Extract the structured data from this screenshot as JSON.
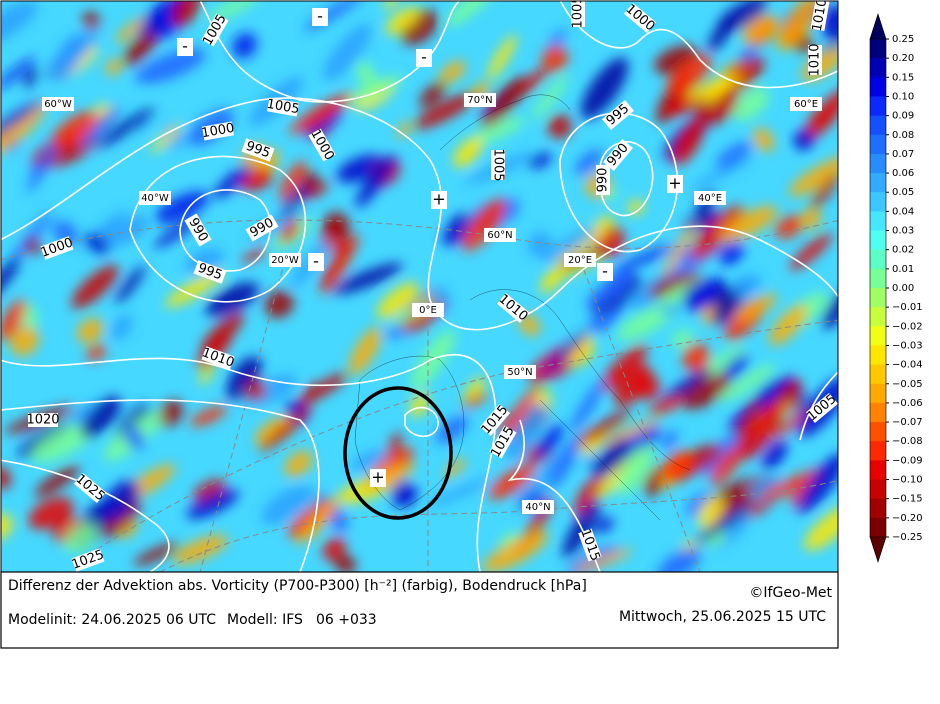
{
  "map": {
    "isobar_labels": [
      "1005",
      "1000",
      "1005",
      "1010",
      "1010",
      "1005",
      "1000",
      "995",
      "1000",
      "1005",
      "990",
      "995",
      "990",
      "1000",
      "990",
      "990",
      "995",
      "1010",
      "1010",
      "1020",
      "1015",
      "1015",
      "1025",
      "1025",
      "1015",
      "1005"
    ],
    "graticule_labels": [
      "60°W",
      "70°N",
      "60°E",
      "40°W",
      "40°E",
      "60°N",
      "20°W",
      "20°E",
      "0°E",
      "50°N",
      "40°N"
    ],
    "markers": [
      "+",
      "+",
      "+",
      "-",
      "-",
      "-",
      "-",
      "-"
    ]
  },
  "colorbar": {
    "labels": [
      "0.25",
      "0.20",
      "0.15",
      "0.10",
      "0.09",
      "0.08",
      "0.07",
      "0.06",
      "0.05",
      "0.04",
      "0.03",
      "0.02",
      "0.01",
      "0.00",
      "−0.01",
      "−0.02",
      "−0.03",
      "−0.04",
      "−0.05",
      "−0.06",
      "−0.07",
      "−0.08",
      "−0.09",
      "−0.10",
      "−0.15",
      "−0.20",
      "−0.25"
    ],
    "colors": [
      "#00007a",
      "#0000b4",
      "#0000e6",
      "#0a28ff",
      "#1450ff",
      "#1e6eff",
      "#288cff",
      "#32aaff",
      "#3cc8ff",
      "#46e6ff",
      "#50fff0",
      "#5affc8",
      "#78ff96",
      "#a0ff64",
      "#c8ff3c",
      "#f0ff14",
      "#ffe600",
      "#ffc800",
      "#ffaa00",
      "#ff8200",
      "#ff5000",
      "#ff2800",
      "#e60000",
      "#c80000",
      "#a00000",
      "#7a0000"
    ],
    "top_color": "#00005a",
    "bottom_color": "#5a0000"
  },
  "footer": {
    "title": "Differenz der Advektion abs. Vorticity (P700-P300) [h⁻²] (farbig), Bodendruck [hPa]",
    "copyright": "©IfGeo-Met",
    "modelinit": "Modelinit: 24.06.2025 06 UTC",
    "model": "Modell: IFS",
    "run": "06 +033",
    "valid": "Mittwoch, 25.06.2025 15 UTC"
  }
}
